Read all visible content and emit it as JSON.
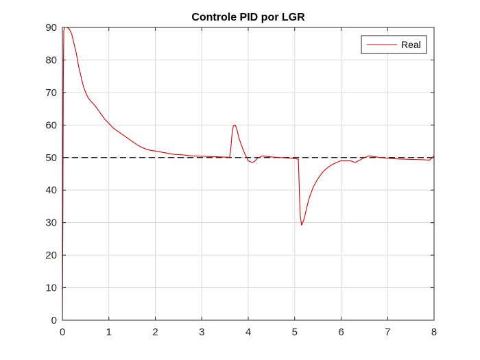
{
  "chart_data": {
    "type": "line",
    "title": "Controle PID por LGR",
    "xlabel": "",
    "ylabel": "",
    "xlim": [
      0,
      8
    ],
    "ylim": [
      0,
      90
    ],
    "x_ticks": [
      0,
      1,
      2,
      3,
      4,
      5,
      6,
      7,
      8
    ],
    "y_ticks": [
      0,
      10,
      20,
      30,
      40,
      50,
      60,
      70,
      80,
      90
    ],
    "grid": true,
    "legend_position": "top-right",
    "reference_line": {
      "y": 50,
      "style": "dashed",
      "color": "#000000"
    },
    "series": [
      {
        "name": "Real",
        "color": "#d40000",
        "points": [
          [
            0.0,
            0
          ],
          [
            0.01,
            30
          ],
          [
            0.02,
            75
          ],
          [
            0.03,
            89
          ],
          [
            0.05,
            90
          ],
          [
            0.1,
            90
          ],
          [
            0.15,
            89.5
          ],
          [
            0.2,
            88
          ],
          [
            0.25,
            85
          ],
          [
            0.3,
            82
          ],
          [
            0.35,
            78
          ],
          [
            0.4,
            75
          ],
          [
            0.45,
            72
          ],
          [
            0.5,
            70
          ],
          [
            0.55,
            68.5
          ],
          [
            0.6,
            67.5
          ],
          [
            0.7,
            66
          ],
          [
            0.8,
            64
          ],
          [
            0.9,
            62
          ],
          [
            1.0,
            60.5
          ],
          [
            1.1,
            59
          ],
          [
            1.2,
            58
          ],
          [
            1.3,
            57
          ],
          [
            1.4,
            56
          ],
          [
            1.5,
            55
          ],
          [
            1.6,
            54
          ],
          [
            1.7,
            53.2
          ],
          [
            1.8,
            52.6
          ],
          [
            1.9,
            52.2
          ],
          [
            2.0,
            52
          ],
          [
            2.2,
            51.5
          ],
          [
            2.4,
            51
          ],
          [
            2.6,
            50.8
          ],
          [
            2.8,
            50.5
          ],
          [
            3.0,
            50.4
          ],
          [
            3.2,
            50.3
          ],
          [
            3.4,
            50.2
          ],
          [
            3.6,
            50.1
          ],
          [
            3.62,
            52
          ],
          [
            3.65,
            57
          ],
          [
            3.68,
            59.8
          ],
          [
            3.72,
            60
          ],
          [
            3.76,
            58.5
          ],
          [
            3.8,
            56
          ],
          [
            3.85,
            54
          ],
          [
            3.9,
            52
          ],
          [
            3.95,
            50.5
          ],
          [
            4.0,
            49
          ],
          [
            4.05,
            48.7
          ],
          [
            4.1,
            48.5
          ],
          [
            4.15,
            49
          ],
          [
            4.2,
            49.8
          ],
          [
            4.3,
            50.5
          ],
          [
            4.5,
            50.2
          ],
          [
            4.7,
            50
          ],
          [
            4.9,
            49.8
          ],
          [
            5.0,
            49.7
          ],
          [
            5.08,
            49.5
          ],
          [
            5.1,
            40
          ],
          [
            5.12,
            32
          ],
          [
            5.15,
            29.2
          ],
          [
            5.2,
            31
          ],
          [
            5.25,
            34
          ],
          [
            5.3,
            37
          ],
          [
            5.4,
            41
          ],
          [
            5.5,
            43.5
          ],
          [
            5.6,
            45.5
          ],
          [
            5.7,
            46.8
          ],
          [
            5.8,
            47.8
          ],
          [
            5.9,
            48.5
          ],
          [
            6.0,
            49
          ],
          [
            6.1,
            49
          ],
          [
            6.2,
            49
          ],
          [
            6.3,
            48.5
          ],
          [
            6.4,
            49.2
          ],
          [
            6.5,
            50
          ],
          [
            6.6,
            50.5
          ],
          [
            6.7,
            50.3
          ],
          [
            6.8,
            50.1
          ],
          [
            7.0,
            49.8
          ],
          [
            7.2,
            49.6
          ],
          [
            7.4,
            49.5
          ],
          [
            7.6,
            49.4
          ],
          [
            7.8,
            49.3
          ],
          [
            7.9,
            49.2
          ],
          [
            7.95,
            49.8
          ],
          [
            8.0,
            50.6
          ]
        ]
      }
    ]
  }
}
